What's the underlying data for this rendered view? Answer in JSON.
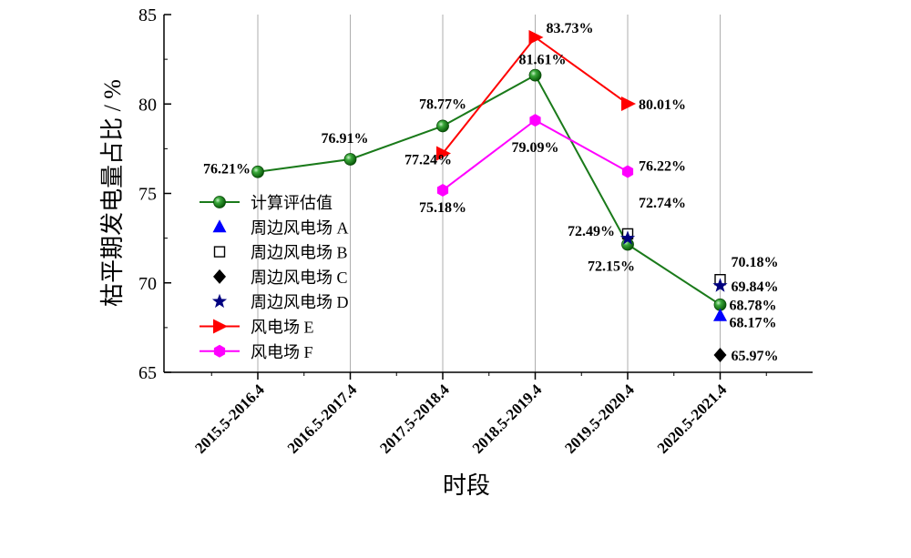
{
  "chart_data": {
    "type": "line",
    "xlabel": "时段",
    "ylabel": "枯平期发电量占比 / %",
    "ylim": [
      65,
      85
    ],
    "yticks": [
      65,
      70,
      75,
      80,
      85
    ],
    "categories": [
      "2015.5-2016.4",
      "2016.5-2017.4",
      "2017.5-2018.4",
      "2018.5-2019.4",
      "2019.5-2020.4",
      "2020.5-2021.4"
    ],
    "grid": "vertical lines at category ticks",
    "legend_position": "left-middle inside",
    "series": [
      {
        "name": "计算评估值",
        "marker": "sphere",
        "color": "#1a7a1a",
        "line": true,
        "values": [
          76.21,
          76.91,
          78.77,
          81.61,
          72.15,
          68.78
        ],
        "labels": [
          "76.21%",
          "76.91%",
          "78.77%",
          "81.61%",
          "72.15%",
          "68.78%"
        ]
      },
      {
        "name": "周边风电场 A",
        "marker": "triangle",
        "color": "#0000ff",
        "line": false,
        "values": [
          null,
          null,
          null,
          null,
          null,
          68.17
        ],
        "labels": [
          null,
          null,
          null,
          null,
          null,
          "68.17%"
        ]
      },
      {
        "name": "周边风电场 B",
        "marker": "square-open",
        "color": "#000000",
        "line": false,
        "values": [
          null,
          null,
          null,
          null,
          72.74,
          70.18
        ],
        "labels": [
          null,
          null,
          null,
          null,
          "72.74%",
          "70.18%"
        ]
      },
      {
        "name": "周边风电场 C",
        "marker": "diamond",
        "color": "#000000",
        "line": false,
        "values": [
          null,
          null,
          null,
          null,
          null,
          65.97
        ],
        "labels": [
          null,
          null,
          null,
          null,
          null,
          "65.97%"
        ]
      },
      {
        "name": "周边风电场 D",
        "marker": "star",
        "color": "#000080",
        "line": false,
        "values": [
          null,
          null,
          null,
          null,
          72.49,
          69.84
        ],
        "labels": [
          null,
          null,
          null,
          null,
          "72.49%",
          "69.84%"
        ]
      },
      {
        "name": "风电场 E",
        "marker": "triangle-right",
        "color": "#ff0000",
        "line": true,
        "values": [
          null,
          null,
          77.24,
          83.73,
          80.01,
          null
        ],
        "labels": [
          null,
          null,
          "77.24%",
          "83.73%",
          "80.01%",
          null
        ]
      },
      {
        "name": "风电场 F",
        "marker": "hexagon",
        "color": "#ff00ff",
        "line": true,
        "values": [
          null,
          null,
          75.18,
          79.09,
          76.22,
          null
        ],
        "labels": [
          null,
          null,
          "75.18%",
          "79.09%",
          "76.22%",
          null
        ]
      }
    ]
  }
}
